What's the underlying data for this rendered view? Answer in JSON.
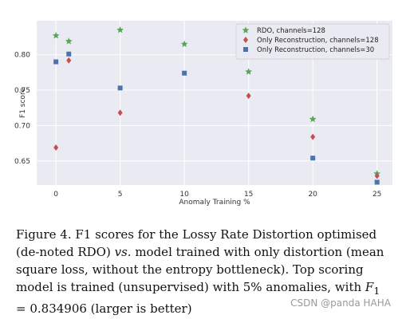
{
  "chart_data": {
    "type": "scatter",
    "xlabel": "Anomaly Training %",
    "ylabel": "F1 score",
    "xlim": [
      -1.5,
      26.2
    ],
    "ylim": [
      0.616,
      0.848
    ],
    "xticks": [
      0,
      5,
      10,
      15,
      20,
      25
    ],
    "yticks": [
      0.65,
      0.7,
      0.75,
      0.8
    ],
    "ytick_labels": [
      "0.65",
      "0.70",
      "0.75",
      "0.80"
    ],
    "grid": true,
    "legend_position": "top-right",
    "series": [
      {
        "name": "RDO, channels=128",
        "marker": "star",
        "color": "#5aa55a",
        "points": [
          [
            0,
            0.827
          ],
          [
            1,
            0.819
          ],
          [
            5,
            0.835
          ],
          [
            10,
            0.815
          ],
          [
            15,
            0.776
          ],
          [
            20,
            0.709
          ],
          [
            25,
            0.632
          ]
        ]
      },
      {
        "name": "Only Reconstruction, channels=128",
        "marker": "diamond",
        "color": "#c44e52",
        "points": [
          [
            0,
            0.669
          ],
          [
            1,
            0.792
          ],
          [
            5,
            0.718
          ],
          [
            15,
            0.742
          ],
          [
            20,
            0.684
          ],
          [
            25,
            0.629
          ]
        ]
      },
      {
        "name": "Only Reconstruction, channels=30",
        "marker": "square",
        "color": "#4c72b0",
        "points": [
          [
            0,
            0.79
          ],
          [
            1,
            0.801
          ],
          [
            5,
            0.753
          ],
          [
            10,
            0.774
          ],
          [
            20,
            0.654
          ],
          [
            25,
            0.62
          ]
        ]
      }
    ]
  },
  "caption": {
    "prefix": "Figure 4.  F1 scores for the Lossy Rate Distortion optimised (de-noted RDO) ",
    "vs": "vs.",
    "middle": " model trained with only distortion (mean square loss, without the entropy bottleneck). Top scoring model is trained (unsupervised) with 5% anomalies, with ",
    "f1": "F",
    "f1_sub": "1",
    "suffix": " = 0.834906 (larger is better)"
  },
  "watermark": "CSDN @panda HAHA"
}
